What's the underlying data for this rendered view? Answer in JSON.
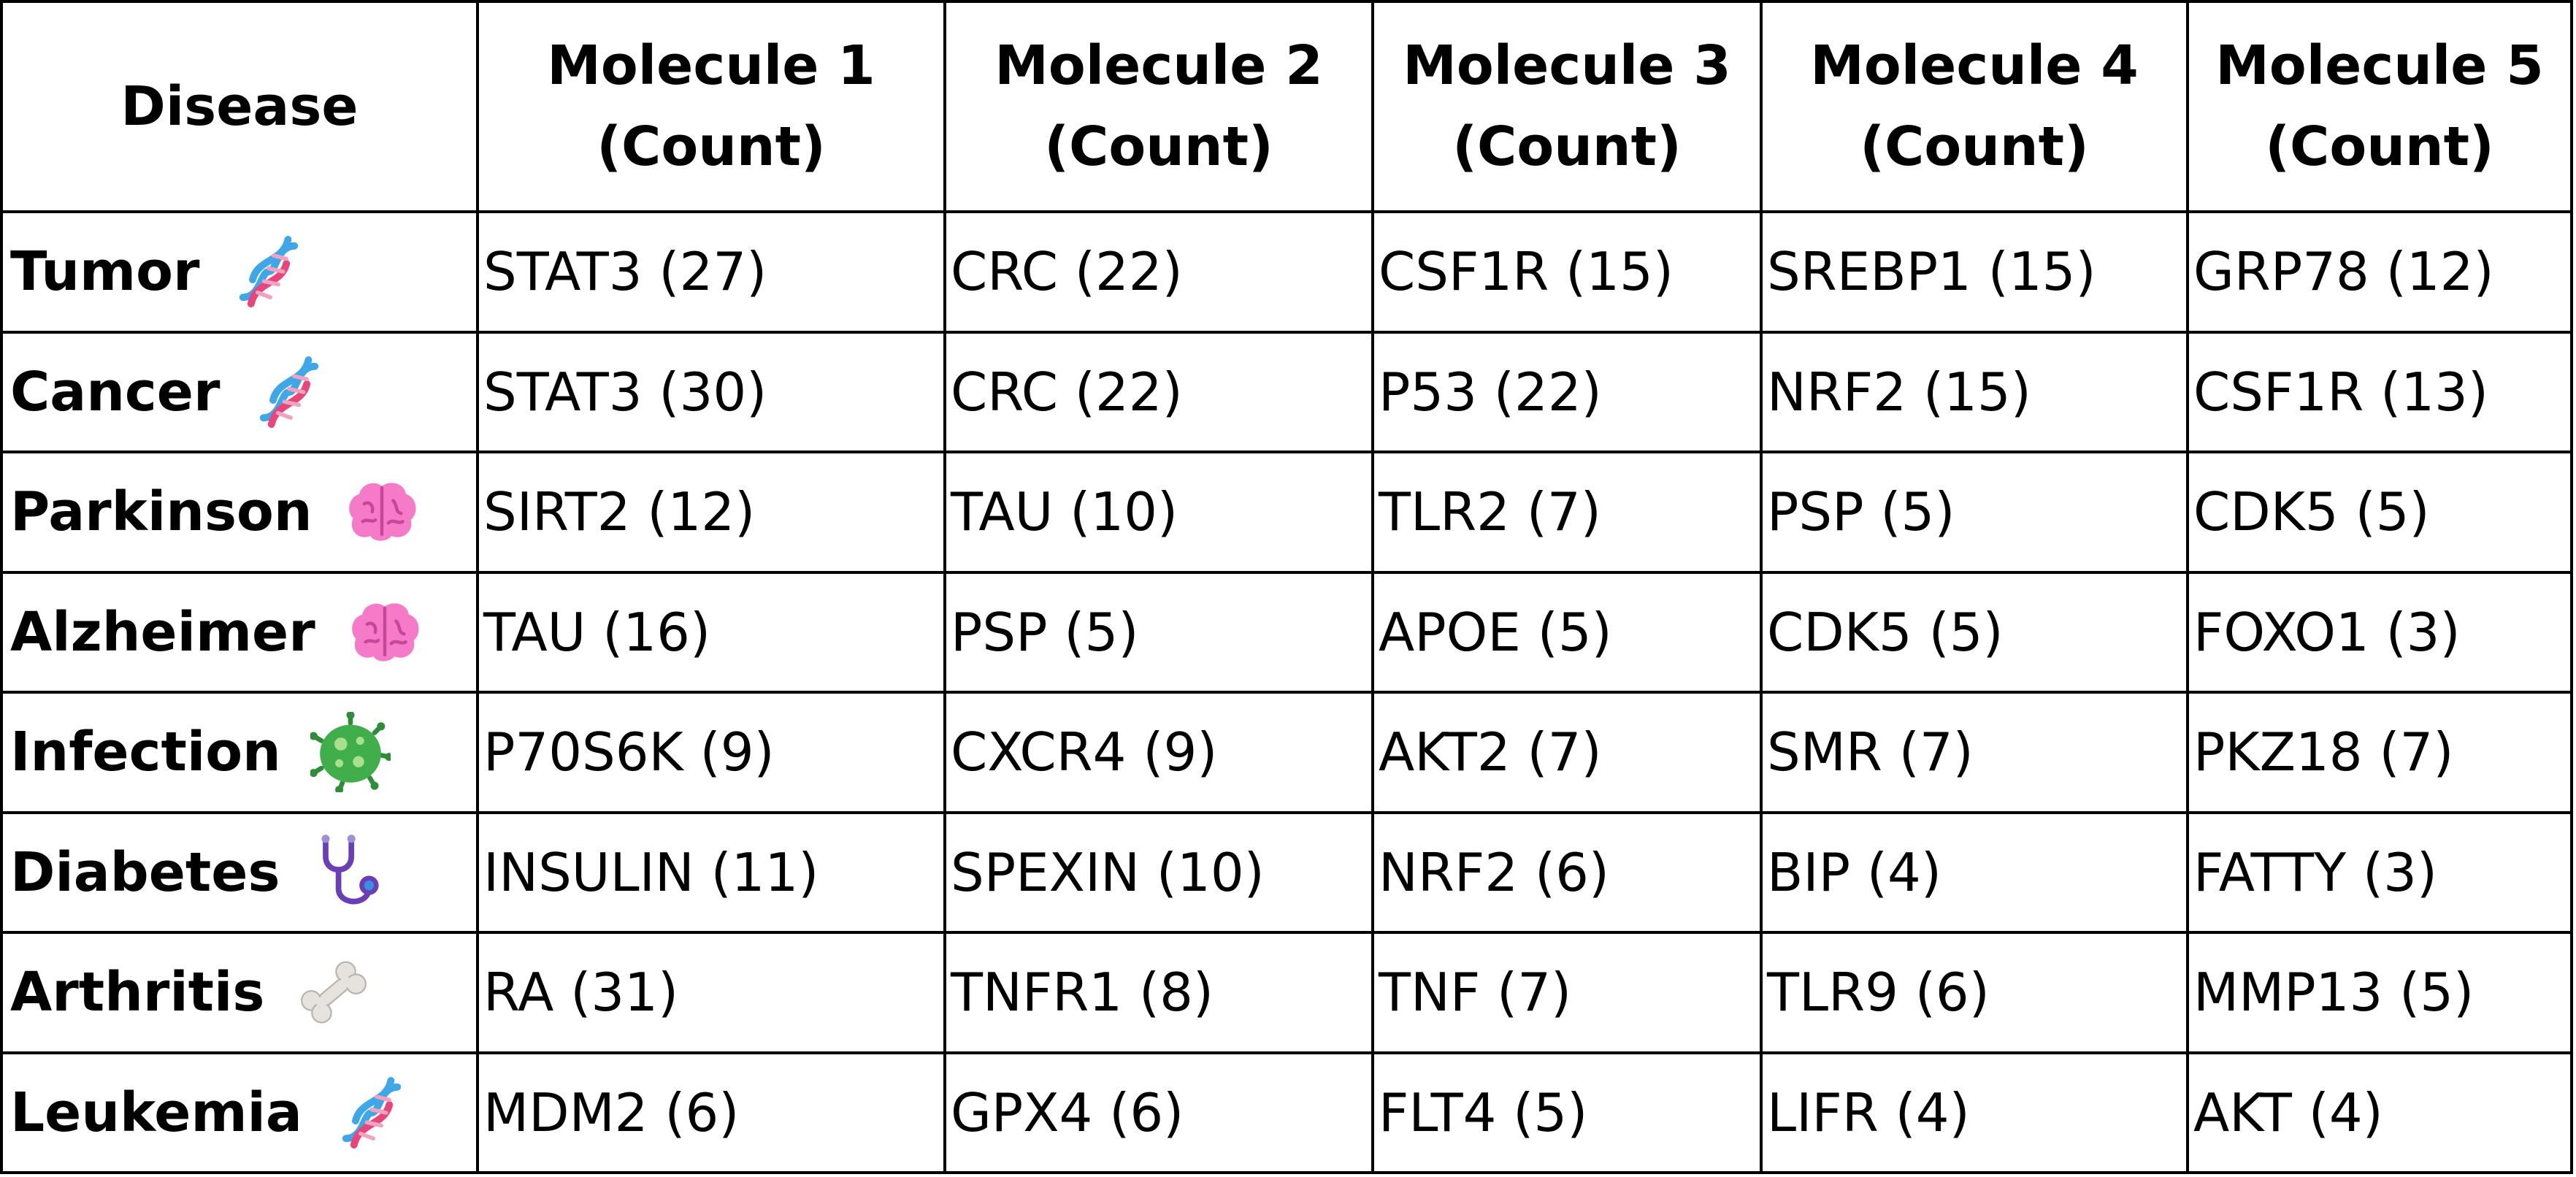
{
  "chart_data": {
    "type": "table",
    "columns": [
      "Disease",
      "Molecule 1 (Count)",
      "Molecule 2 (Count)",
      "Molecule 3 (Count)",
      "Molecule 4 (Count)",
      "Molecule 5 (Count)"
    ],
    "rows": [
      {
        "disease": "Tumor",
        "icon": "dna-icon",
        "cells": [
          "STAT3 (27)",
          "CRC (22)",
          "CSF1R (15)",
          "SREBP1 (15)",
          "GRP78 (12)"
        ]
      },
      {
        "disease": "Cancer",
        "icon": "dna-icon",
        "cells": [
          "STAT3 (30)",
          "CRC (22)",
          "P53 (22)",
          "NRF2 (15)",
          "CSF1R (13)"
        ]
      },
      {
        "disease": "Parkinson",
        "icon": "brain-icon",
        "cells": [
          "SIRT2 (12)",
          "TAU (10)",
          "TLR2 (7)",
          "PSP (5)",
          "CDK5 (5)"
        ]
      },
      {
        "disease": "Alzheimer",
        "icon": "brain-icon",
        "cells": [
          "TAU (16)",
          "PSP (5)",
          "APOE (5)",
          "CDK5 (5)",
          "FOXO1 (3)"
        ]
      },
      {
        "disease": "Infection",
        "icon": "microbe-icon",
        "cells": [
          "P70S6K (9)",
          "CXCR4 (9)",
          "AKT2 (7)",
          "SMR (7)",
          "PKZ18 (7)"
        ]
      },
      {
        "disease": "Diabetes",
        "icon": "stethoscope-icon",
        "cells": [
          "INSULIN (11)",
          "SPEXIN (10)",
          "NRF2 (6)",
          "BIP (4)",
          "FATTY (3)"
        ]
      },
      {
        "disease": "Arthritis",
        "icon": "bone-icon",
        "cells": [
          "RA (31)",
          "TNFR1 (8)",
          "TNF (7)",
          "TLR9 (6)",
          "MMP13 (5)"
        ]
      },
      {
        "disease": "Leukemia",
        "icon": "dna-icon",
        "cells": [
          "MDM2 (6)",
          "GPX4 (6)",
          "FLT4 (5)",
          "LIFR (4)",
          "AKT (4)"
        ]
      }
    ]
  },
  "colors": {
    "border": "#000000",
    "dna_blue": "#3fa7e8",
    "dna_pink": "#e8457a",
    "brain_pink": "#f57ac8",
    "microbe_green": "#3fae4b",
    "stethoscope_purple": "#6a3fb5",
    "bone": "#e6e3df"
  }
}
